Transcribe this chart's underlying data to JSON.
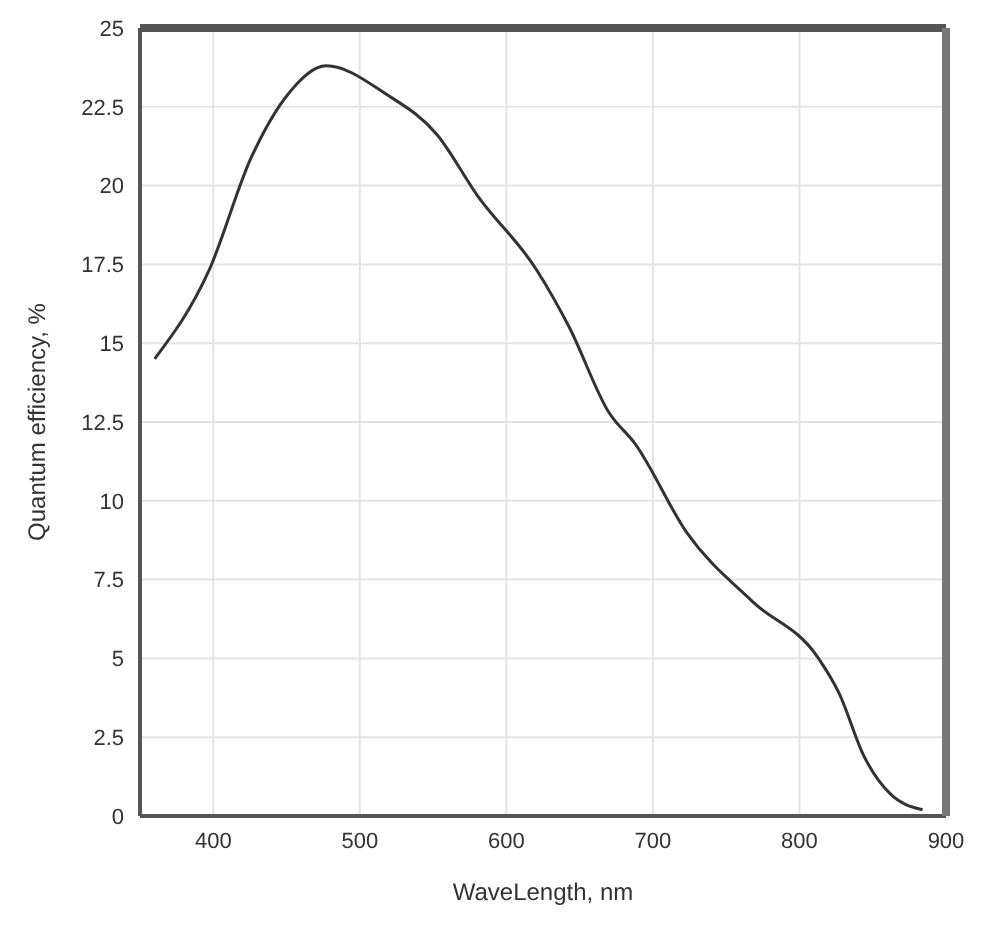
{
  "chart_data": {
    "type": "line",
    "xlabel": "WaveLength, nm",
    "ylabel": "Quantum efficiency, %",
    "xlim": [
      350,
      900
    ],
    "xticks": [
      400,
      500,
      600,
      700,
      800,
      900
    ],
    "ylim": [
      0,
      25
    ],
    "yticks": [
      0,
      2.5,
      5,
      7.5,
      10,
      12.5,
      15,
      17.5,
      20,
      22.5,
      25
    ],
    "grid": true,
    "marker": "none",
    "line_style": "solid",
    "series": [
      {
        "color": "#333333",
        "x": [
          360,
          397,
          426,
          451,
          477,
          518,
          553,
          580,
          621,
          643,
          670,
          688,
          723,
          768,
          813,
          827,
          844,
          862,
          884
        ],
        "values": [
          14.5,
          17.3,
          20.9,
          22.9,
          23.8,
          22.9,
          21.6,
          19.7,
          17.3,
          15.5,
          12.8,
          11.8,
          9.0,
          6.8,
          5.0,
          3.9,
          1.9,
          0.7,
          0.2
        ]
      }
    ]
  }
}
